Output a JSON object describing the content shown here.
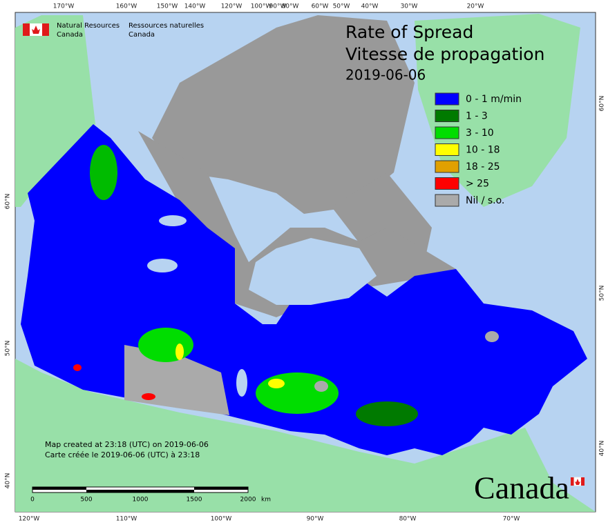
{
  "header": {
    "agency_en_1": "Natural Resources",
    "agency_en_2": "Canada",
    "agency_fr_1": "Ressources naturelles",
    "agency_fr_2": "Canada"
  },
  "title": {
    "line1": "Rate of Spread",
    "line2": "Vitesse de propagation",
    "date": "2019-06-06"
  },
  "legend": [
    {
      "label": "0 - 1 m/min",
      "color": "#0000ff"
    },
    {
      "label": "1 - 3",
      "color": "#007a00"
    },
    {
      "label": "3 - 10",
      "color": "#00dd00"
    },
    {
      "label": "10 - 18",
      "color": "#ffff00"
    },
    {
      "label": "18 - 25",
      "color": "#e0a000"
    },
    {
      "label": "> 25",
      "color": "#ff0000"
    },
    {
      "label": "Nil / s.o.",
      "color": "#aaaaaa"
    }
  ],
  "graticule": {
    "top": [
      "170°W",
      "160°W",
      "150°W",
      "140°W",
      "120°W",
      "100°W",
      "90°W",
      "80°W",
      "60°W",
      "50°W",
      "40°W",
      "30°W",
      "20°W"
    ],
    "bottom": [
      "120°W",
      "110°W",
      "100°W",
      "90°W",
      "80°W",
      "70°W"
    ],
    "left": [
      "60°N",
      "50°N",
      "40°N"
    ],
    "right": [
      "60°N",
      "50°N",
      "40°N"
    ]
  },
  "notes": [
    "Map created at 23:18 (UTC) on 2019-06-06",
    "Carte créée le 2019-06-06 (UTC) à 23:18"
  ],
  "scale": {
    "labels": [
      "0",
      "500",
      "1000",
      "1500",
      "2000"
    ],
    "unit": "km"
  },
  "wordmark": "Canada"
}
